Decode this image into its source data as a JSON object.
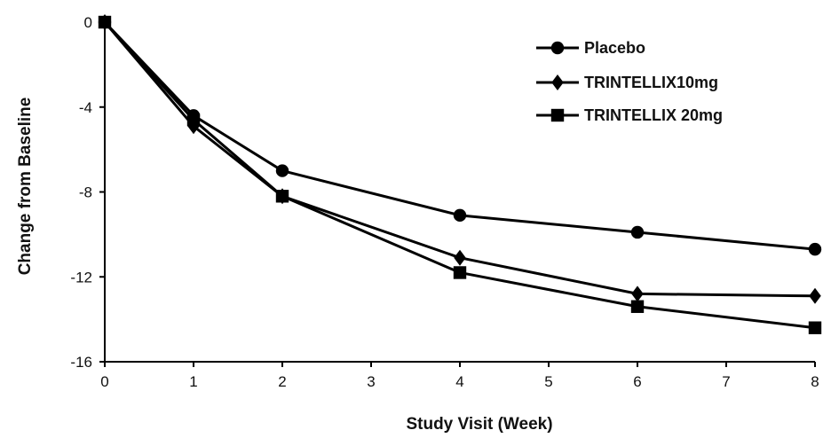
{
  "chart_data": {
    "type": "line",
    "xlabel": "Study Visit (Week)",
    "ylabel": "Change from Baseline",
    "xlim": [
      0,
      8
    ],
    "ylim": [
      -16,
      0
    ],
    "xticks": [
      "0",
      "1",
      "2",
      "3",
      "4",
      "5",
      "6",
      "7",
      "8"
    ],
    "yticks": [
      "0",
      "-4",
      "-8",
      "-12",
      "-16"
    ],
    "grid": false,
    "legend_position": "top-right",
    "series": [
      {
        "name": "Placebo",
        "marker": "circle",
        "color": "#000000",
        "x": [
          0,
          1,
          2,
          4,
          6,
          8
        ],
        "y": [
          0,
          -4.4,
          -7.0,
          -9.1,
          -9.9,
          -10.7
        ]
      },
      {
        "name": "TRINTELLIX10mg",
        "marker": "diamond",
        "color": "#000000",
        "x": [
          0,
          1,
          2,
          4,
          6,
          8
        ],
        "y": [
          0,
          -4.9,
          -8.2,
          -11.1,
          -12.8,
          -12.9
        ]
      },
      {
        "name": "TRINTELLIX 20mg",
        "marker": "square",
        "color": "#000000",
        "x": [
          0,
          1,
          2,
          4,
          6,
          8
        ],
        "y": [
          0,
          -4.6,
          -8.2,
          -11.8,
          -13.4,
          -14.4
        ]
      }
    ]
  }
}
